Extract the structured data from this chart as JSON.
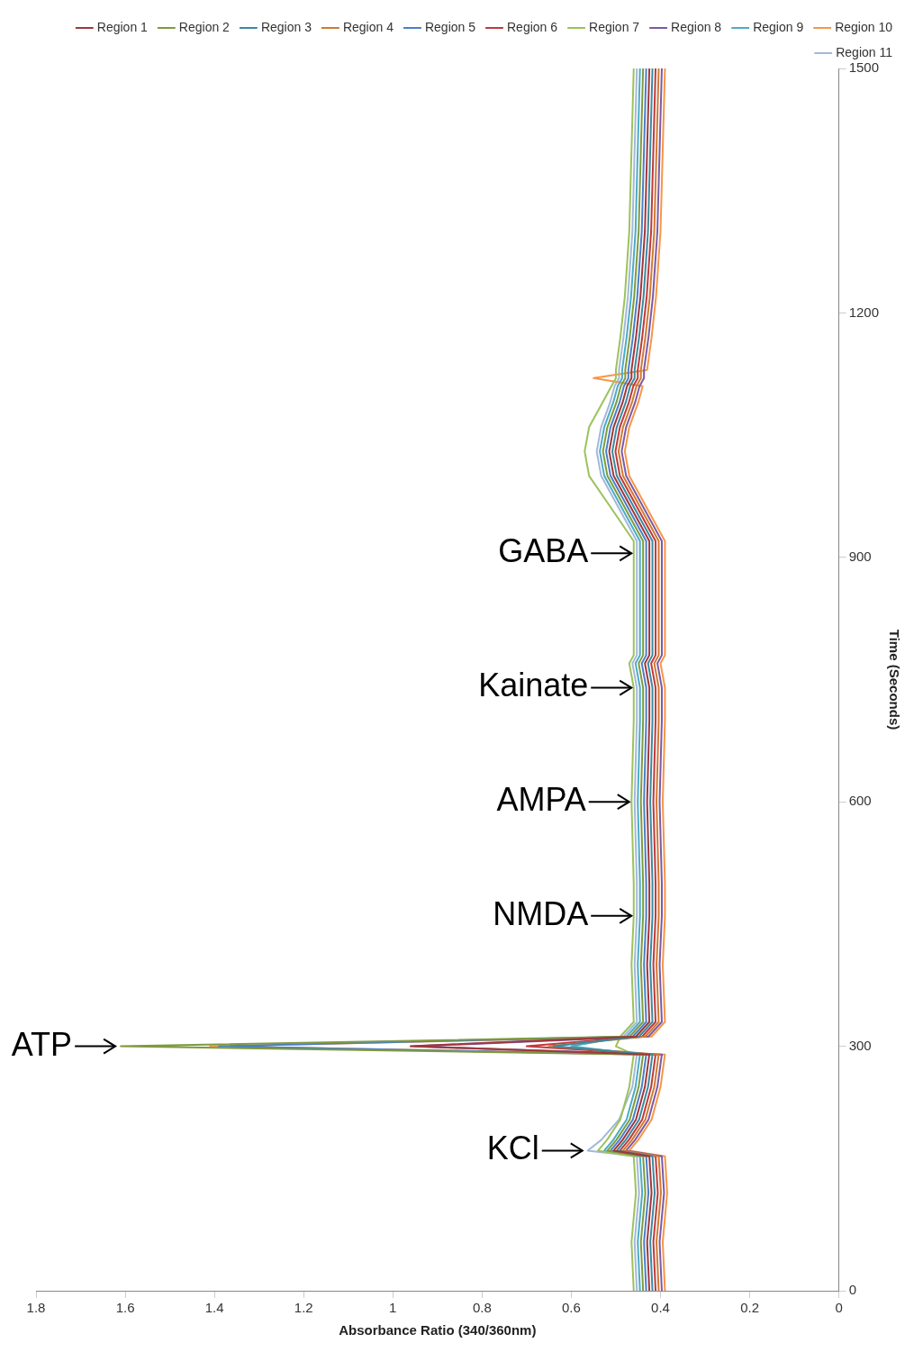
{
  "chart_data": {
    "type": "line",
    "orientation": "horizontal",
    "xlabel": "Absorbance Ratio (340/360nm)",
    "ylabel": "Time (Seconds)",
    "x": [
      0,
      60,
      120,
      165,
      172,
      185,
      210,
      250,
      290,
      300,
      312,
      330,
      400,
      460,
      500,
      600,
      700,
      740,
      770,
      780,
      850,
      905,
      920,
      960,
      1000,
      1030,
      1060,
      1090,
      1110,
      1120,
      1130,
      1170,
      1220,
      1300,
      1400,
      1500
    ],
    "series": [
      {
        "name": "Region 1",
        "color": "#a0373a",
        "values": [
          0.425,
          0.43,
          0.42,
          0.425,
          0.505,
          0.485,
          0.455,
          0.435,
          0.425,
          0.96,
          0.455,
          0.425,
          0.43,
          0.425,
          0.425,
          0.43,
          0.425,
          0.425,
          0.435,
          0.425,
          0.425,
          0.425,
          0.425,
          0.465,
          0.505,
          0.515,
          0.505,
          0.485,
          0.475,
          0.465,
          0.465,
          0.455,
          0.445,
          0.435,
          0.43,
          0.425
        ]
      },
      {
        "name": "Region 2",
        "color": "#7f9a3f",
        "values": [
          0.439,
          0.444,
          0.434,
          0.439,
          0.519,
          0.499,
          0.469,
          0.449,
          0.439,
          1.61,
          0.469,
          0.439,
          0.444,
          0.439,
          0.439,
          0.444,
          0.439,
          0.439,
          0.449,
          0.439,
          0.439,
          0.439,
          0.439,
          0.479,
          0.519,
          0.529,
          0.519,
          0.499,
          0.489,
          0.479,
          0.479,
          0.469,
          0.459,
          0.449,
          0.444,
          0.439
        ]
      },
      {
        "name": "Region 3",
        "color": "#3a8aa0",
        "values": [
          0.418,
          0.423,
          0.413,
          0.418,
          0.498,
          0.478,
          0.448,
          0.428,
          0.418,
          0.64,
          0.448,
          0.418,
          0.423,
          0.418,
          0.418,
          0.423,
          0.418,
          0.418,
          0.428,
          0.418,
          0.418,
          0.418,
          0.418,
          0.458,
          0.498,
          0.508,
          0.498,
          0.478,
          0.468,
          0.458,
          0.458,
          0.448,
          0.438,
          0.428,
          0.423,
          0.418
        ]
      },
      {
        "name": "Region 4",
        "color": "#d07a30",
        "values": [
          0.404,
          0.409,
          0.399,
          0.404,
          0.484,
          0.464,
          0.434,
          0.414,
          0.404,
          0.65,
          0.434,
          0.404,
          0.409,
          0.404,
          0.404,
          0.409,
          0.404,
          0.404,
          0.414,
          0.404,
          0.404,
          0.404,
          0.404,
          0.444,
          0.484,
          0.494,
          0.484,
          0.464,
          0.454,
          0.444,
          0.444,
          0.434,
          0.424,
          0.414,
          0.409,
          0.404
        ]
      },
      {
        "name": "Region 5",
        "color": "#4a7fc8",
        "values": [
          0.432,
          0.437,
          0.427,
          0.432,
          0.512,
          0.492,
          0.462,
          0.442,
          0.432,
          1.39,
          0.462,
          0.432,
          0.437,
          0.432,
          0.432,
          0.437,
          0.432,
          0.432,
          0.442,
          0.432,
          0.432,
          0.432,
          0.432,
          0.472,
          0.512,
          0.522,
          0.512,
          0.492,
          0.482,
          0.472,
          0.472,
          0.462,
          0.452,
          0.442,
          0.437,
          0.432
        ]
      },
      {
        "name": "Region 6",
        "color": "#c0393b",
        "values": [
          0.411,
          0.416,
          0.406,
          0.411,
          0.491,
          0.471,
          0.441,
          0.421,
          0.411,
          0.7,
          0.441,
          0.411,
          0.416,
          0.411,
          0.411,
          0.416,
          0.411,
          0.411,
          0.421,
          0.411,
          0.411,
          0.411,
          0.411,
          0.451,
          0.491,
          0.501,
          0.491,
          0.471,
          0.461,
          0.451,
          0.451,
          0.441,
          0.431,
          0.421,
          0.416,
          0.411
        ]
      },
      {
        "name": "Region 7",
        "color": "#9bc35a",
        "values": [
          0.46,
          0.465,
          0.455,
          0.46,
          0.54,
          0.52,
          0.49,
          0.47,
          0.46,
          0.5,
          0.49,
          0.46,
          0.465,
          0.46,
          0.46,
          0.465,
          0.46,
          0.46,
          0.47,
          0.46,
          0.46,
          0.46,
          0.46,
          0.51,
          0.56,
          0.57,
          0.56,
          0.53,
          0.51,
          0.5,
          0.5,
          0.49,
          0.48,
          0.47,
          0.465,
          0.46
        ]
      },
      {
        "name": "Region 8",
        "color": "#7b5aa6",
        "values": [
          0.397,
          0.402,
          0.392,
          0.397,
          0.477,
          0.457,
          0.427,
          0.407,
          0.397,
          0.95,
          0.427,
          0.397,
          0.402,
          0.397,
          0.397,
          0.402,
          0.397,
          0.397,
          0.407,
          0.397,
          0.397,
          0.397,
          0.397,
          0.437,
          0.477,
          0.487,
          0.477,
          0.457,
          0.447,
          0.437,
          0.437,
          0.427,
          0.417,
          0.407,
          0.402,
          0.397
        ]
      },
      {
        "name": "Region 9",
        "color": "#4bacc6",
        "values": [
          0.446,
          0.451,
          0.441,
          0.446,
          0.526,
          0.506,
          0.476,
          0.456,
          0.446,
          0.6,
          0.476,
          0.446,
          0.451,
          0.446,
          0.446,
          0.451,
          0.446,
          0.446,
          0.456,
          0.446,
          0.446,
          0.446,
          0.446,
          0.486,
          0.526,
          0.536,
          0.526,
          0.506,
          0.496,
          0.486,
          0.486,
          0.476,
          0.466,
          0.456,
          0.451,
          0.446
        ]
      },
      {
        "name": "Region 10",
        "color": "#f79646",
        "values": [
          0.39,
          0.395,
          0.385,
          0.39,
          0.47,
          0.45,
          0.42,
          0.4,
          0.39,
          1.41,
          0.42,
          0.39,
          0.395,
          0.39,
          0.39,
          0.395,
          0.39,
          0.39,
          0.4,
          0.39,
          0.39,
          0.39,
          0.39,
          0.43,
          0.47,
          0.48,
          0.47,
          0.45,
          0.44,
          0.55,
          0.43,
          0.42,
          0.41,
          0.4,
          0.395,
          0.39
        ]
      },
      {
        "name": "Region 11",
        "color": "#a5b8d8",
        "values": [
          0.453,
          0.458,
          0.448,
          0.453,
          0.563,
          0.533,
          0.493,
          0.463,
          0.453,
          0.96,
          0.483,
          0.453,
          0.458,
          0.453,
          0.453,
          0.458,
          0.453,
          0.453,
          0.463,
          0.453,
          0.453,
          0.453,
          0.453,
          0.493,
          0.533,
          0.543,
          0.533,
          0.513,
          0.503,
          0.493,
          0.493,
          0.483,
          0.473,
          0.463,
          0.458,
          0.453
        ]
      }
    ],
    "annotations": [
      {
        "text": "KCl",
        "x": 0.563,
        "y": 172
      },
      {
        "text": "ATP",
        "x": 1.61,
        "y": 300
      },
      {
        "text": "NMDA",
        "x": 0.453,
        "y": 460
      },
      {
        "text": "AMPA",
        "x": 0.458,
        "y": 600
      },
      {
        "text": "Kainate",
        "x": 0.453,
        "y": 740
      },
      {
        "text": "GABA",
        "x": 0.453,
        "y": 905
      }
    ],
    "xlim": [
      1.8,
      0
    ],
    "xticks": [
      1.8,
      1.6,
      1.4,
      1.2,
      1,
      0.8,
      0.6,
      0.4,
      0.2,
      0
    ],
    "ylim": [
      0,
      1500
    ],
    "yticks": [
      0,
      300,
      600,
      900,
      1200,
      1500
    ],
    "grid": false,
    "legend": "top right",
    "marker": "none",
    "line_style": "solid"
  }
}
